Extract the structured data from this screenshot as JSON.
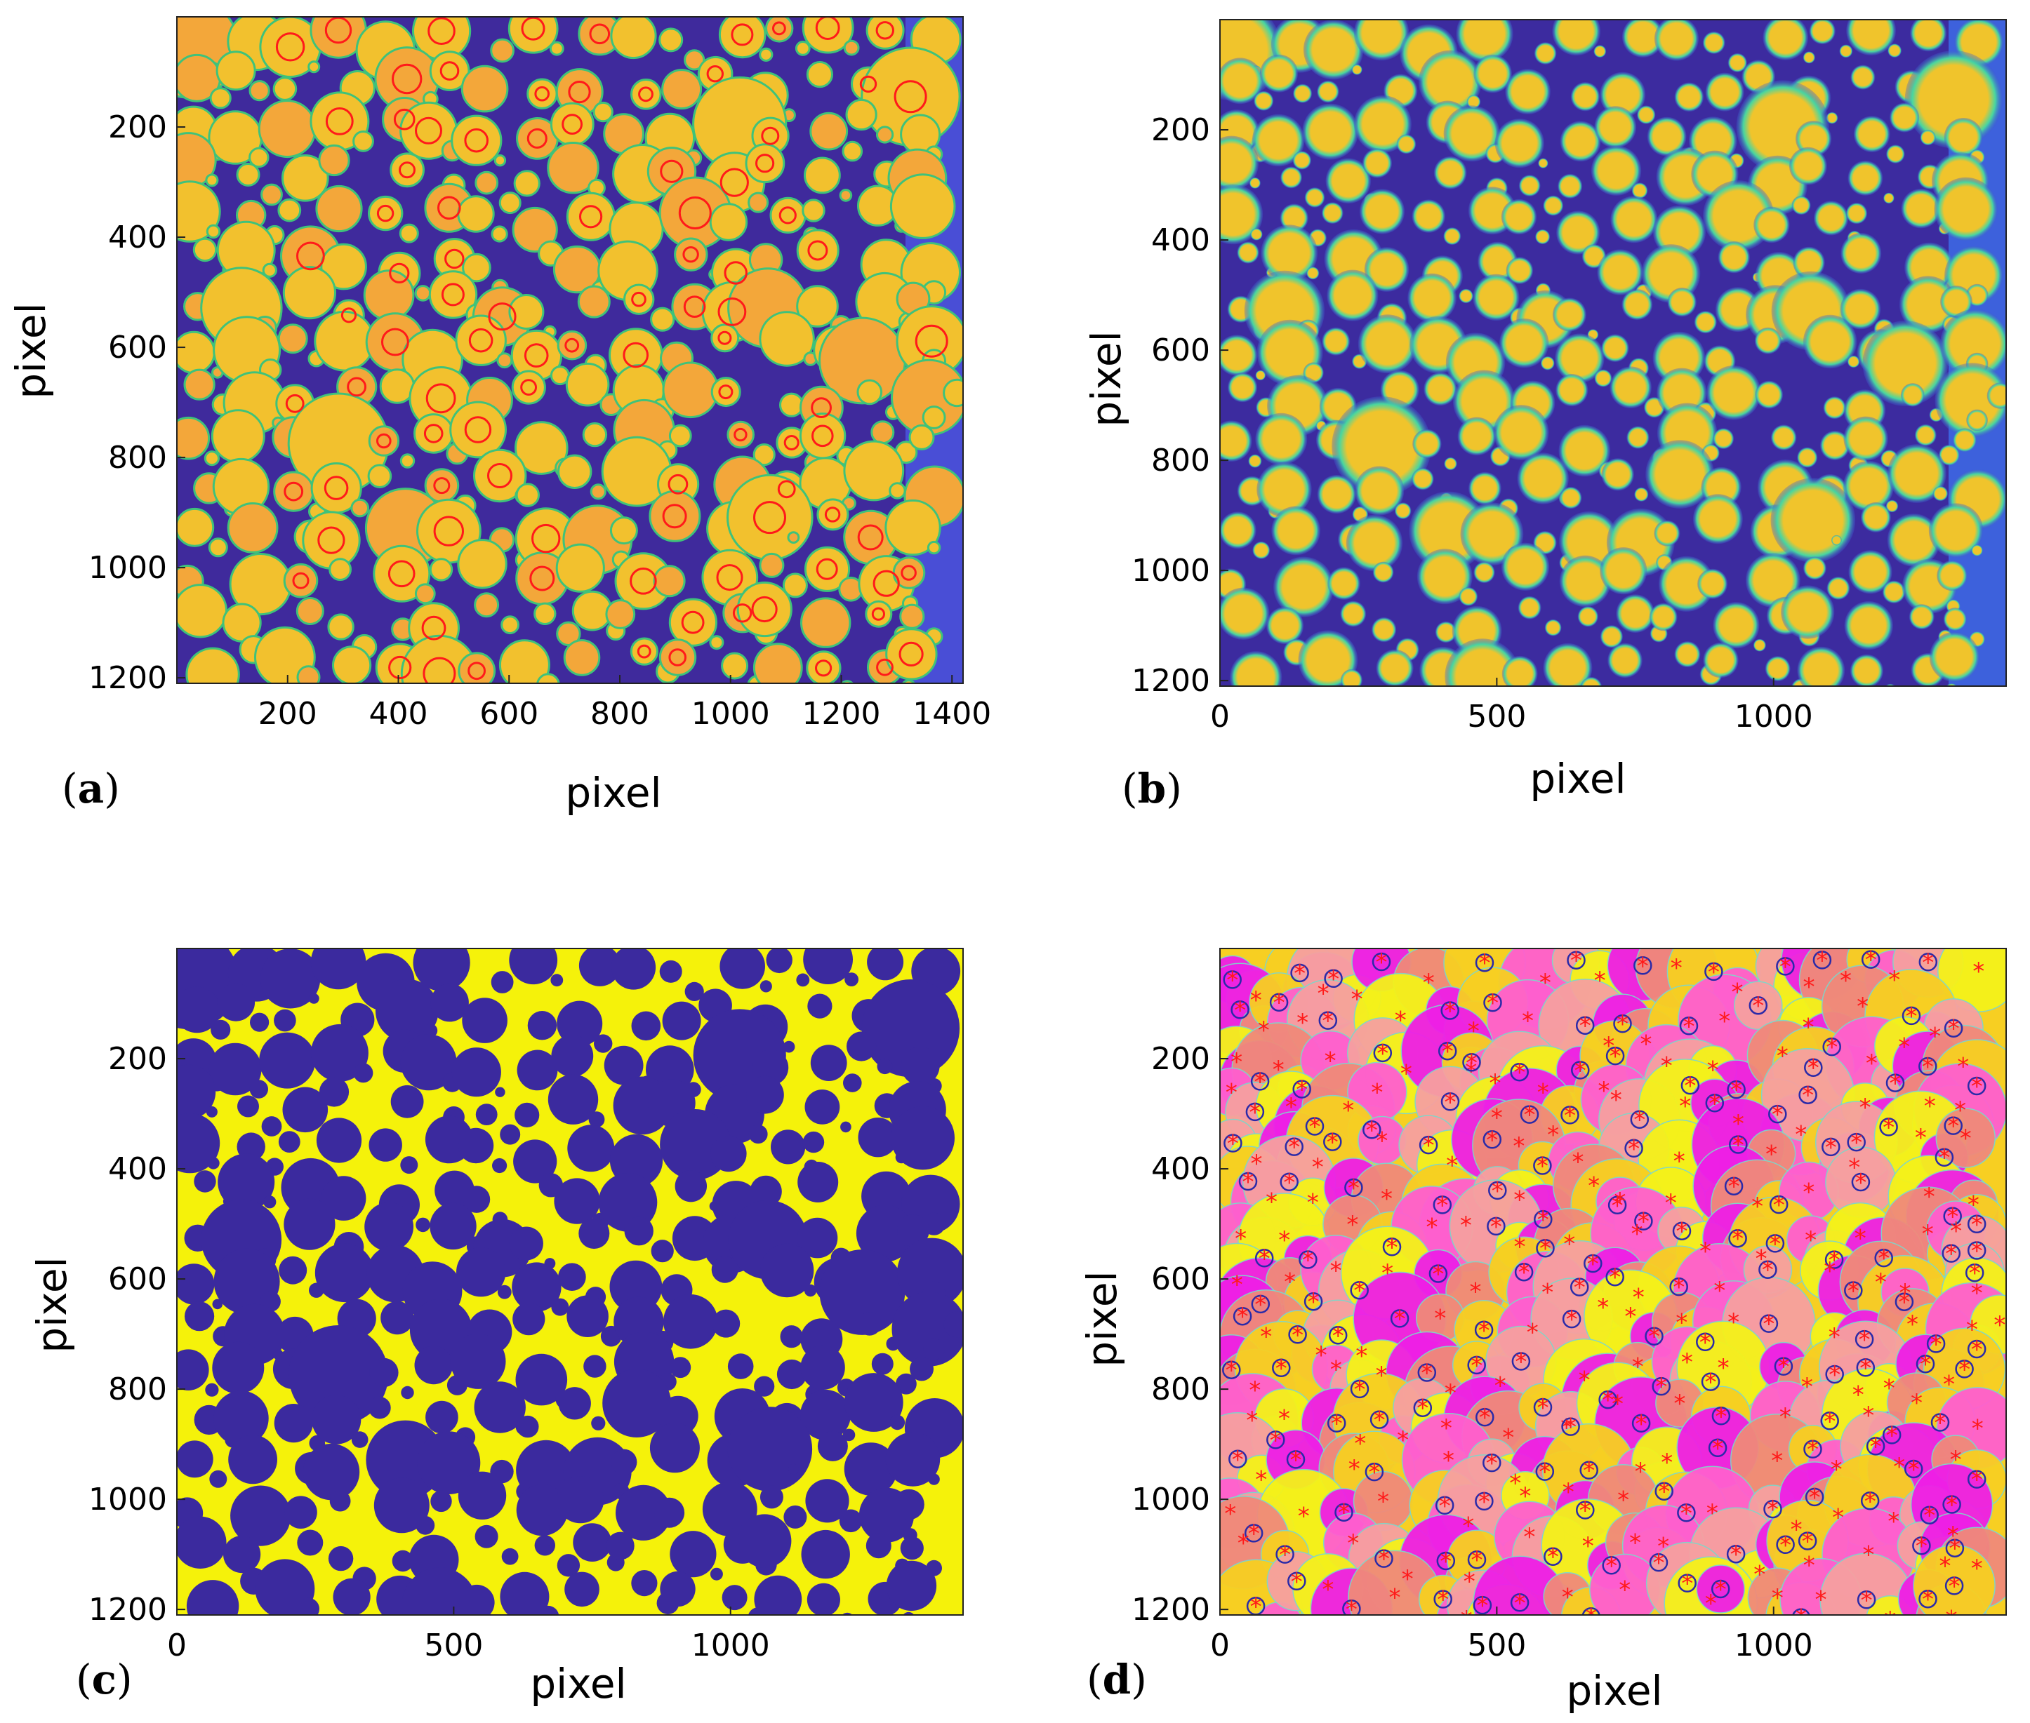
{
  "panels": [
    {
      "letter": "a",
      "xlabel": "pixel",
      "ylabel": "pixel",
      "xticks": [
        "200",
        "400",
        "600",
        "800",
        "1000",
        "1200",
        "1400"
      ],
      "yticks": [
        "200",
        "400",
        "600",
        "800",
        "1000",
        "1200"
      ],
      "image_style": "false-color droplet image (blue background, yellow/orange droplets) with red detection circles"
    },
    {
      "letter": "b",
      "xlabel": "pixel",
      "ylabel": "pixel",
      "xticks": [
        "0",
        "500",
        "1000"
      ],
      "yticks": [
        "200",
        "400",
        "600",
        "800",
        "1000",
        "1200"
      ],
      "image_style": "false-color droplet image with blurred halo edges"
    },
    {
      "letter": "c",
      "xlabel": "pixel",
      "ylabel": "pixel",
      "xticks": [
        "0",
        "500",
        "1000"
      ],
      "yticks": [
        "200",
        "400",
        "600",
        "800",
        "1000",
        "1200"
      ],
      "image_style": "binary mask: yellow background, purple droplets"
    },
    {
      "letter": "d",
      "xlabel": "pixel",
      "ylabel": "pixel",
      "xticks": [
        "0",
        "500",
        "1000"
      ],
      "yticks": [
        "200",
        "400",
        "600",
        "800",
        "1000",
        "1200"
      ],
      "image_style": "Voronoi-like segmentation in magenta/salmon/yellow with red asterisk centroids and blue circles"
    }
  ],
  "colors": {
    "bg_blue": "#3f2a9c",
    "droplet_yellow": "#f2c12e",
    "droplet_orange": "#f3a73a",
    "mask_yellow": "#f5f20a",
    "mask_purple": "#3b2a9e",
    "magenta": "#ee1fe6",
    "salmon": "#f08a7a",
    "gold": "#f7cf22",
    "red": "#ff1a1a"
  }
}
